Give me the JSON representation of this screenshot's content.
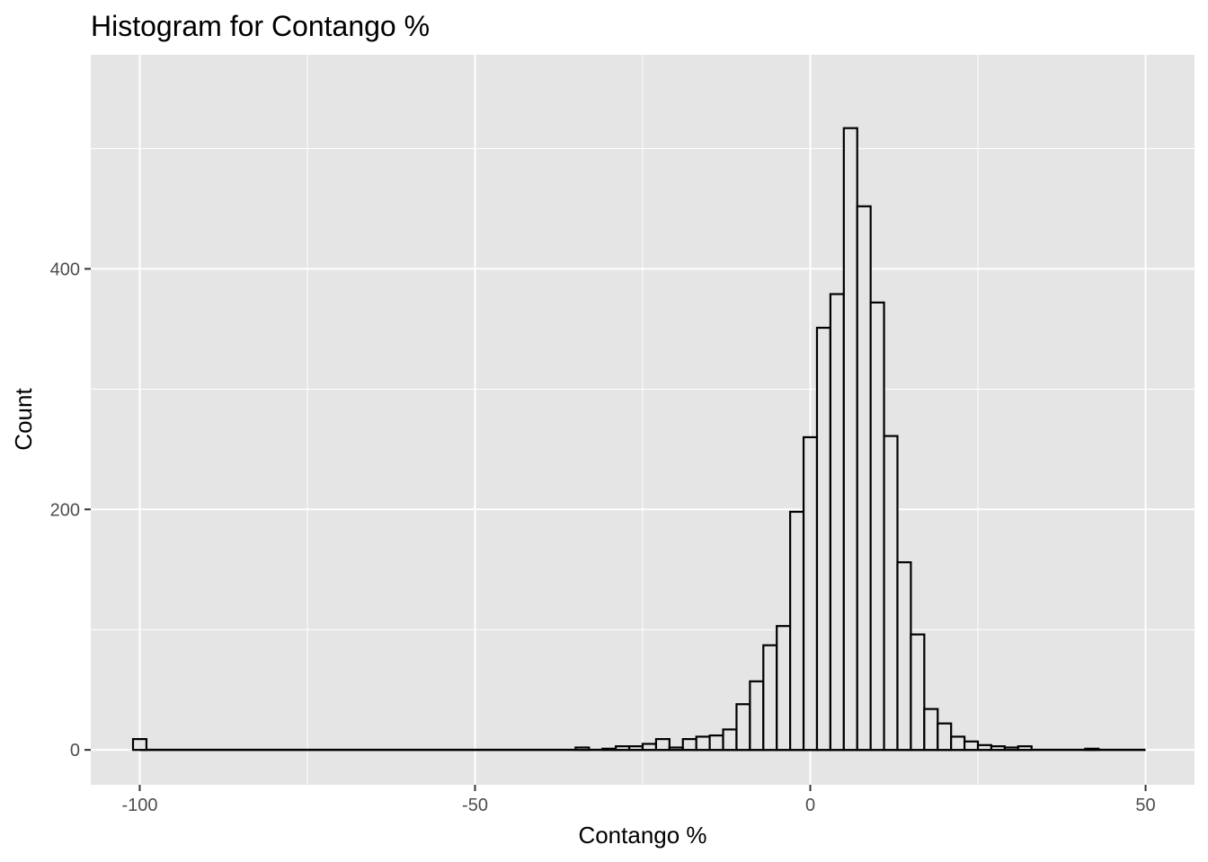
{
  "chart_data": {
    "type": "bar",
    "title": "Histogram for Contango %",
    "xlabel": "Contango %",
    "ylabel": "Count",
    "xlim": [
      -107.3,
      57.3
    ],
    "ylim": [
      -29,
      578
    ],
    "x_ticks": [
      -100,
      -50,
      0,
      50
    ],
    "x_tick_labels": [
      "-100",
      "-50",
      "0",
      "50"
    ],
    "x_minor_ticks": [
      -75,
      -25,
      25
    ],
    "y_ticks": [
      0,
      200,
      400
    ],
    "y_tick_labels": [
      "0",
      "200",
      "400"
    ],
    "y_minor_ticks": [
      100,
      300,
      500
    ],
    "grid": true,
    "panel_background": "#e5e5e5",
    "grid_color": "#ffffff",
    "bar_fill": "#e5e5e5",
    "bar_stroke": "#000000",
    "bin_width": 2,
    "bins": [
      {
        "x": -100,
        "count": 9
      },
      {
        "x": -34,
        "count": 2
      },
      {
        "x": -30,
        "count": 1
      },
      {
        "x": -28,
        "count": 3
      },
      {
        "x": -26,
        "count": 3
      },
      {
        "x": -24,
        "count": 5
      },
      {
        "x": -22,
        "count": 9
      },
      {
        "x": -20,
        "count": 2
      },
      {
        "x": -18,
        "count": 9
      },
      {
        "x": -16,
        "count": 11
      },
      {
        "x": -14,
        "count": 12
      },
      {
        "x": -12,
        "count": 17
      },
      {
        "x": -10,
        "count": 38
      },
      {
        "x": -8,
        "count": 57
      },
      {
        "x": -6,
        "count": 87
      },
      {
        "x": -4,
        "count": 103
      },
      {
        "x": -2,
        "count": 198
      },
      {
        "x": 0,
        "count": 260
      },
      {
        "x": 2,
        "count": 351
      },
      {
        "x": 4,
        "count": 379
      },
      {
        "x": 6,
        "count": 517
      },
      {
        "x": 8,
        "count": 452
      },
      {
        "x": 10,
        "count": 372
      },
      {
        "x": 12,
        "count": 261
      },
      {
        "x": 14,
        "count": 156
      },
      {
        "x": 16,
        "count": 96
      },
      {
        "x": 18,
        "count": 34
      },
      {
        "x": 20,
        "count": 22
      },
      {
        "x": 22,
        "count": 11
      },
      {
        "x": 24,
        "count": 7
      },
      {
        "x": 26,
        "count": 4
      },
      {
        "x": 28,
        "count": 3
      },
      {
        "x": 30,
        "count": 2
      },
      {
        "x": 32,
        "count": 3
      },
      {
        "x": 42,
        "count": 1
      }
    ],
    "baseline_range": [
      -100,
      50
    ]
  }
}
